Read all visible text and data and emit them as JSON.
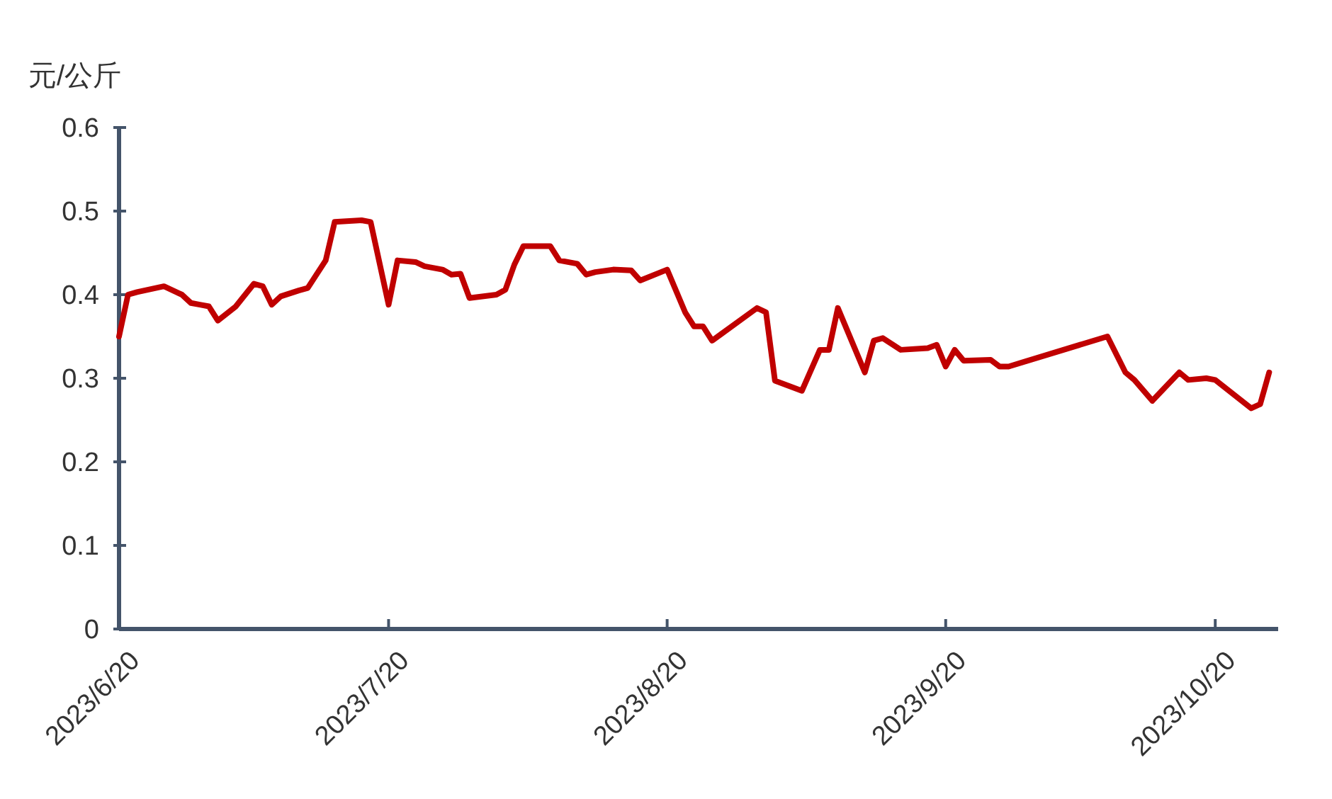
{
  "chart_data": {
    "type": "line",
    "ylabel": "元/公斤",
    "xlim": [
      "2023-06-20",
      "2023-10-27"
    ],
    "xticks": [
      {
        "value": "2023-06-20",
        "label": "2023/6/20"
      },
      {
        "value": "2023-07-20",
        "label": "2023/7/20"
      },
      {
        "value": "2023-08-20",
        "label": "2023/8/20"
      },
      {
        "value": "2023-09-20",
        "label": "2023/9/20"
      },
      {
        "value": "2023-10-20",
        "label": "2023/10/20"
      }
    ],
    "ylim": [
      0,
      0.6
    ],
    "yticks": [
      0,
      0.1,
      0.2,
      0.3,
      0.4,
      0.5,
      0.6
    ],
    "grid": false,
    "marker": "none",
    "line_style": "solid",
    "series": [
      {
        "color": "#c00000",
        "x": [
          "2023-06-20",
          "2023-06-21",
          "2023-06-22",
          "2023-06-25",
          "2023-06-27",
          "2023-06-28",
          "2023-06-29",
          "2023-06-30",
          "2023-07-01",
          "2023-07-03",
          "2023-07-05",
          "2023-07-06",
          "2023-07-07",
          "2023-07-08",
          "2023-07-10",
          "2023-07-11",
          "2023-07-13",
          "2023-07-14",
          "2023-07-17",
          "2023-07-18",
          "2023-07-20",
          "2023-07-21",
          "2023-07-23",
          "2023-07-24",
          "2023-07-26",
          "2023-07-27",
          "2023-07-28",
          "2023-07-29",
          "2023-08-01",
          "2023-08-02",
          "2023-08-03",
          "2023-08-04",
          "2023-08-07",
          "2023-08-08",
          "2023-08-10",
          "2023-08-11",
          "2023-08-12",
          "2023-08-14",
          "2023-08-16",
          "2023-08-17",
          "2023-08-20",
          "2023-08-22",
          "2023-08-23",
          "2023-08-24",
          "2023-08-25",
          "2023-08-30",
          "2023-08-31",
          "2023-09-01",
          "2023-09-04",
          "2023-09-06",
          "2023-09-07",
          "2023-09-08",
          "2023-09-11",
          "2023-09-12",
          "2023-09-13",
          "2023-09-14",
          "2023-09-15",
          "2023-09-18",
          "2023-09-19",
          "2023-09-20",
          "2023-09-21",
          "2023-09-22",
          "2023-09-25",
          "2023-09-26",
          "2023-09-27",
          "2023-10-08",
          "2023-10-10",
          "2023-10-11",
          "2023-10-13",
          "2023-10-16",
          "2023-10-17",
          "2023-10-19",
          "2023-10-20",
          "2023-10-24",
          "2023-10-25",
          "2023-10-26"
        ],
        "values": [
          0.35,
          0.4,
          0.403,
          0.41,
          0.4,
          0.39,
          0.388,
          0.386,
          0.369,
          0.386,
          0.413,
          0.41,
          0.388,
          0.398,
          0.405,
          0.408,
          0.441,
          0.487,
          0.489,
          0.487,
          0.388,
          0.441,
          0.439,
          0.434,
          0.43,
          0.424,
          0.425,
          0.396,
          0.4,
          0.406,
          0.436,
          0.458,
          0.458,
          0.441,
          0.437,
          0.424,
          0.427,
          0.43,
          0.429,
          0.417,
          0.43,
          0.379,
          0.362,
          0.362,
          0.345,
          0.384,
          0.379,
          0.297,
          0.285,
          0.334,
          0.334,
          0.384,
          0.307,
          0.345,
          0.348,
          0.341,
          0.334,
          0.336,
          0.34,
          0.314,
          0.334,
          0.321,
          0.322,
          0.314,
          0.314,
          0.35,
          0.307,
          0.298,
          0.273,
          0.307,
          0.298,
          0.3,
          0.298,
          0.264,
          0.269,
          0.307
        ]
      }
    ]
  }
}
